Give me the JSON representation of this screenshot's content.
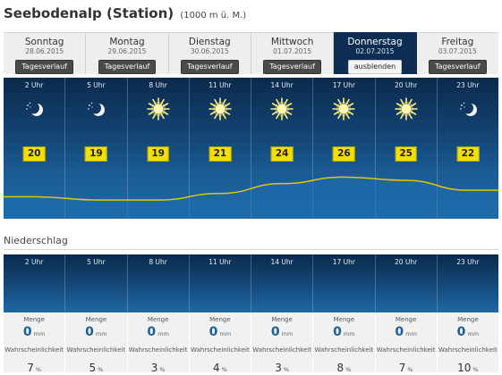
{
  "header": {
    "title": "Seebodenalp (Station)",
    "altitude": "(1000 m ü. M.)"
  },
  "tabs": [
    {
      "day": "Sonntag",
      "date": "28.06.2015",
      "button": "Tagesverlauf"
    },
    {
      "day": "Montag",
      "date": "29.06.2015",
      "button": "Tagesverlauf"
    },
    {
      "day": "Dienstag",
      "date": "30.06.2015",
      "button": "Tagesverlauf"
    },
    {
      "day": "Mittwoch",
      "date": "01.07.2015",
      "button": "Tagesverlauf"
    },
    {
      "day": "Donnerstag",
      "date": "02.07.2015",
      "button": "ausblenden",
      "active": true
    },
    {
      "day": "Freitag",
      "date": "03.07.2015",
      "button": "Tagesverlauf"
    }
  ],
  "hours": [
    {
      "time": "2 Uhr",
      "icon": "moon-stars-icon",
      "temp": "20"
    },
    {
      "time": "5 Uhr",
      "icon": "moon-stars-icon",
      "temp": "19"
    },
    {
      "time": "8 Uhr",
      "icon": "sun-icon",
      "temp": "19"
    },
    {
      "time": "11 Uhr",
      "icon": "sun-icon",
      "temp": "21"
    },
    {
      "time": "14 Uhr",
      "icon": "sun-icon",
      "temp": "24"
    },
    {
      "time": "17 Uhr",
      "icon": "sun-icon",
      "temp": "26"
    },
    {
      "time": "20 Uhr",
      "icon": "sun-icon",
      "temp": "25"
    },
    {
      "time": "23 Uhr",
      "icon": "moon-stars-icon",
      "temp": "22"
    }
  ],
  "precip": {
    "title": "Niederschlag",
    "amount_label": "Menge",
    "amount_unit": "mm",
    "prob_label": "Wahrscheinlichkeit",
    "prob_unit": "%",
    "items": [
      {
        "time": "2 Uhr",
        "amount": "0",
        "prob": "7"
      },
      {
        "time": "5 Uhr",
        "amount": "0",
        "prob": "5"
      },
      {
        "time": "8 Uhr",
        "amount": "0",
        "prob": "3"
      },
      {
        "time": "11 Uhr",
        "amount": "0",
        "prob": "4"
      },
      {
        "time": "14 Uhr",
        "amount": "0",
        "prob": "3"
      },
      {
        "time": "17 Uhr",
        "amount": "0",
        "prob": "8"
      },
      {
        "time": "20 Uhr",
        "amount": "0",
        "prob": "7"
      },
      {
        "time": "23 Uhr",
        "amount": "0",
        "prob": "10"
      }
    ]
  },
  "colors": {
    "accent": "#0d2e52",
    "temp_badge": "#f3e000",
    "curve": "#e8c400",
    "value_blue": "#1a5f98"
  }
}
